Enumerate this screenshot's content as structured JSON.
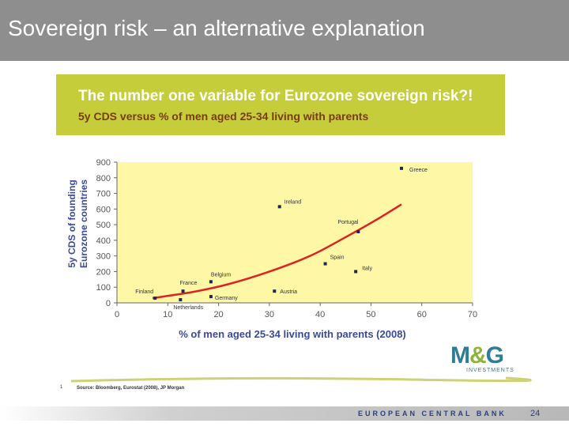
{
  "slide": {
    "title": "Sovereign risk – an alternative explanation",
    "page_number": "24",
    "footer": "EUROPEAN CENTRAL BANK"
  },
  "logo": {
    "main_left": "M",
    "main_amp": "&",
    "main_right": "G",
    "sub": "INVESTMENTS"
  },
  "source": {
    "number": "1",
    "text": "Source: Bloomberg, Eurostat (2008), JP Morgan"
  },
  "colors": {
    "plot_background": "#fdf7a6",
    "header_band": "#c6cd3a",
    "axis_label": "#3a4a96",
    "trend_line": "#dd2222"
  },
  "chart_data": {
    "type": "scatter",
    "title": "The number one variable for Eurozone sovereign risk?!",
    "subtitle": "5y CDS versus % of men aged 25-34 living with parents",
    "xlabel": "% of men aged 25-34 living with parents (2008)",
    "ylabel_line1": "5y CDS of founding",
    "ylabel_line2": "Eurozone countries",
    "xlim": [
      0,
      70
    ],
    "ylim": [
      0,
      900
    ],
    "xticks": [
      "0",
      "10",
      "20",
      "30",
      "40",
      "50",
      "60",
      "70"
    ],
    "yticks": [
      "0",
      "100",
      "200",
      "300",
      "400",
      "500",
      "600",
      "700",
      "800",
      "900"
    ],
    "grid": false,
    "points": [
      {
        "name": "Greece",
        "x": 56,
        "y": 860
      },
      {
        "name": "Ireland",
        "x": 32,
        "y": 615
      },
      {
        "name": "Portugal",
        "x": 47.5,
        "y": 455
      },
      {
        "name": "Spain",
        "x": 41,
        "y": 250
      },
      {
        "name": "Italy",
        "x": 47,
        "y": 200
      },
      {
        "name": "Belgium",
        "x": 18.5,
        "y": 135
      },
      {
        "name": "France",
        "x": 13,
        "y": 75
      },
      {
        "name": "Austria",
        "x": 31,
        "y": 75
      },
      {
        "name": "Germany",
        "x": 18.5,
        "y": 40
      },
      {
        "name": "Finland",
        "x": 7.5,
        "y": 30
      },
      {
        "name": "Netherlands",
        "x": 12.5,
        "y": 20
      }
    ],
    "trendline": {
      "x": [
        7,
        15,
        22,
        30,
        38,
        45,
        51,
        56
      ],
      "y": [
        30,
        70,
        120,
        200,
        300,
        420,
        530,
        630
      ]
    }
  }
}
